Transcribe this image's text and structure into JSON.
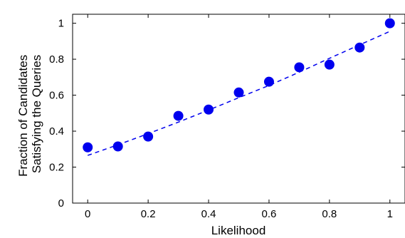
{
  "chart_data": {
    "type": "scatter",
    "xlabel": "Likelihood",
    "ylabel_lines": [
      "Fraction of Candidates",
      "Satisfying the Queries"
    ],
    "xlim": [
      -0.05,
      1.05
    ],
    "ylim": [
      0,
      1.05
    ],
    "xticks": [
      0,
      0.2,
      0.4,
      0.6,
      0.8,
      1
    ],
    "xtick_labels": [
      "0",
      "0.2",
      "0.4",
      "0.6",
      "0.8",
      "1"
    ],
    "yticks": [
      0,
      0.2,
      0.4,
      0.6,
      0.8,
      1
    ],
    "ytick_labels": [
      "0",
      "0.2",
      "0.4",
      "0.6",
      "0.8",
      "1"
    ],
    "grid": false,
    "series": [
      {
        "style": "markers",
        "color": "#0000ee",
        "x": [
          0,
          0.1,
          0.2,
          0.3,
          0.4,
          0.5,
          0.6,
          0.7,
          0.8,
          0.9,
          1.0
        ],
        "y": [
          0.31,
          0.315,
          0.37,
          0.485,
          0.52,
          0.615,
          0.675,
          0.755,
          0.77,
          0.865,
          1.0
        ]
      },
      {
        "style": "dashed-line",
        "color": "#0000ee",
        "x": [
          0,
          0.1,
          0.2,
          0.3,
          0.4,
          0.5,
          0.6,
          0.7,
          0.8,
          0.9,
          1.0
        ],
        "y": [
          0.265,
          0.324,
          0.386,
          0.45,
          0.517,
          0.586,
          0.654,
          0.728,
          0.805,
          0.88,
          0.955
        ]
      }
    ]
  }
}
